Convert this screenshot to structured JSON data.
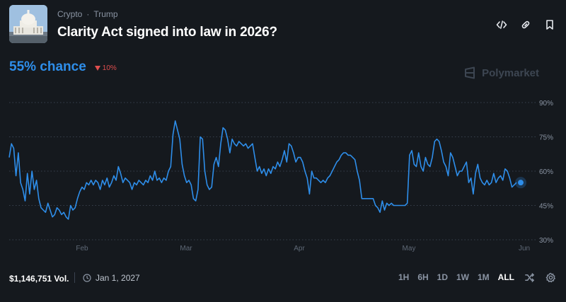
{
  "header": {
    "category": "Crypto",
    "separator": "·",
    "subcategory": "Trump",
    "title": "Clarity Act signed into law in 2026?",
    "actions": [
      "embed-icon",
      "link-icon",
      "bookmark-icon"
    ]
  },
  "summary": {
    "chance": "55% chance",
    "delta": "10%",
    "delta_direction": "down",
    "delta_color": "#e04e4e",
    "accent": "#2e8eea"
  },
  "brand": {
    "name": "Polymarket"
  },
  "chart_data": {
    "type": "line",
    "x_ticks": [
      "Feb",
      "Mar",
      "Apr",
      "May",
      "Jun"
    ],
    "y_ticks": [
      "90%",
      "75%",
      "60%",
      "45%",
      "30%"
    ],
    "ylim": [
      30,
      90
    ],
    "grid": "horizontal dotted",
    "series": [
      {
        "color": "#2e8eea",
        "points": [
          [
            0,
            66
          ],
          [
            1,
            72
          ],
          [
            2,
            70
          ],
          [
            3,
            58
          ],
          [
            4,
            68
          ],
          [
            5,
            55
          ],
          [
            6,
            52
          ],
          [
            7,
            47
          ],
          [
            8,
            59
          ],
          [
            9,
            50
          ],
          [
            10,
            60
          ],
          [
            11,
            52
          ],
          [
            12,
            56
          ],
          [
            13,
            48
          ],
          [
            14,
            44
          ],
          [
            15,
            43
          ],
          [
            16,
            42
          ],
          [
            17,
            46
          ],
          [
            18,
            43
          ],
          [
            19,
            40
          ],
          [
            20,
            41
          ],
          [
            21,
            44
          ],
          [
            22,
            43
          ],
          [
            23,
            41
          ],
          [
            24,
            42
          ],
          [
            25,
            40
          ],
          [
            26,
            39
          ],
          [
            27,
            45
          ],
          [
            28,
            43
          ],
          [
            29,
            44
          ],
          [
            30,
            48
          ],
          [
            31,
            51
          ],
          [
            32,
            53
          ],
          [
            33,
            52
          ],
          [
            34,
            55
          ],
          [
            35,
            54
          ],
          [
            36,
            56
          ],
          [
            37,
            54
          ],
          [
            38,
            56
          ],
          [
            39,
            55
          ],
          [
            40,
            52
          ],
          [
            41,
            56
          ],
          [
            42,
            54
          ],
          [
            43,
            57
          ],
          [
            44,
            53
          ],
          [
            45,
            55
          ],
          [
            46,
            58
          ],
          [
            47,
            56
          ],
          [
            48,
            62
          ],
          [
            49,
            59
          ],
          [
            50,
            55
          ],
          [
            51,
            57
          ],
          [
            52,
            56
          ],
          [
            53,
            55
          ],
          [
            54,
            52
          ],
          [
            55,
            55
          ],
          [
            56,
            54
          ],
          [
            57,
            56
          ],
          [
            58,
            55
          ],
          [
            59,
            54
          ],
          [
            60,
            56
          ],
          [
            61,
            55
          ],
          [
            62,
            58
          ],
          [
            63,
            56
          ],
          [
            64,
            60
          ],
          [
            65,
            56
          ],
          [
            66,
            57
          ],
          [
            67,
            55
          ],
          [
            68,
            57
          ],
          [
            69,
            56
          ],
          [
            70,
            60
          ],
          [
            71,
            62
          ],
          [
            72,
            76
          ],
          [
            73,
            82
          ],
          [
            74,
            78
          ],
          [
            75,
            74
          ],
          [
            76,
            63
          ],
          [
            77,
            58
          ],
          [
            78,
            55
          ],
          [
            79,
            56
          ],
          [
            80,
            54
          ],
          [
            81,
            48
          ],
          [
            82,
            47
          ],
          [
            83,
            52
          ],
          [
            84,
            75
          ],
          [
            85,
            74
          ],
          [
            86,
            60
          ],
          [
            87,
            54
          ],
          [
            88,
            52
          ],
          [
            89,
            53
          ],
          [
            90,
            63
          ],
          [
            91,
            66
          ],
          [
            92,
            62
          ],
          [
            93,
            72
          ],
          [
            94,
            79
          ],
          [
            95,
            78
          ],
          [
            96,
            74
          ],
          [
            97,
            68
          ],
          [
            98,
            74
          ],
          [
            99,
            72
          ],
          [
            100,
            71
          ],
          [
            101,
            73
          ],
          [
            102,
            72
          ],
          [
            103,
            71
          ],
          [
            104,
            72
          ],
          [
            105,
            70
          ],
          [
            106,
            71
          ],
          [
            107,
            72
          ],
          [
            108,
            66
          ],
          [
            109,
            60
          ],
          [
            110,
            62
          ],
          [
            111,
            59
          ],
          [
            112,
            61
          ],
          [
            113,
            58
          ],
          [
            114,
            61
          ],
          [
            115,
            59
          ],
          [
            116,
            62
          ],
          [
            117,
            61
          ],
          [
            118,
            64
          ],
          [
            119,
            62
          ],
          [
            120,
            65
          ],
          [
            121,
            69
          ],
          [
            122,
            64
          ],
          [
            123,
            72
          ],
          [
            124,
            71
          ],
          [
            125,
            68
          ],
          [
            126,
            64
          ],
          [
            127,
            66
          ],
          [
            128,
            66
          ],
          [
            129,
            64
          ],
          [
            130,
            60
          ],
          [
            131,
            57
          ],
          [
            132,
            50
          ],
          [
            133,
            60
          ],
          [
            134,
            57
          ],
          [
            135,
            57
          ],
          [
            136,
            56
          ],
          [
            137,
            55
          ],
          [
            138,
            56
          ],
          [
            139,
            55
          ],
          [
            140,
            57
          ],
          [
            141,
            58
          ],
          [
            142,
            60
          ],
          [
            143,
            62
          ],
          [
            144,
            64
          ],
          [
            145,
            65
          ],
          [
            146,
            67
          ],
          [
            147,
            68
          ],
          [
            148,
            68
          ],
          [
            149,
            67
          ],
          [
            150,
            67
          ],
          [
            151,
            66
          ],
          [
            152,
            65
          ],
          [
            153,
            60
          ],
          [
            154,
            56
          ],
          [
            155,
            48
          ],
          [
            156,
            48
          ],
          [
            157,
            48
          ],
          [
            158,
            48
          ],
          [
            159,
            48
          ],
          [
            160,
            48
          ],
          [
            161,
            45
          ],
          [
            162,
            44
          ],
          [
            163,
            42
          ],
          [
            164,
            47
          ],
          [
            165,
            43
          ],
          [
            166,
            46
          ],
          [
            167,
            45
          ],
          [
            168,
            46
          ],
          [
            169,
            45
          ],
          [
            170,
            45
          ],
          [
            171,
            45
          ],
          [
            172,
            45
          ],
          [
            173,
            45
          ],
          [
            174,
            45
          ],
          [
            175,
            46
          ],
          [
            176,
            67
          ],
          [
            177,
            69
          ],
          [
            178,
            63
          ],
          [
            179,
            62
          ],
          [
            180,
            68
          ],
          [
            181,
            62
          ],
          [
            182,
            60
          ],
          [
            183,
            66
          ],
          [
            184,
            63
          ],
          [
            185,
            62
          ],
          [
            186,
            66
          ],
          [
            187,
            73
          ],
          [
            188,
            74
          ],
          [
            189,
            73
          ],
          [
            190,
            69
          ],
          [
            191,
            64
          ],
          [
            192,
            62
          ],
          [
            193,
            58
          ],
          [
            194,
            68
          ],
          [
            195,
            66
          ],
          [
            196,
            62
          ],
          [
            197,
            58
          ],
          [
            198,
            60
          ],
          [
            199,
            60
          ],
          [
            200,
            62
          ],
          [
            201,
            64
          ],
          [
            202,
            55
          ],
          [
            203,
            57
          ],
          [
            204,
            50
          ],
          [
            205,
            59
          ],
          [
            206,
            63
          ],
          [
            207,
            57
          ],
          [
            208,
            55
          ],
          [
            209,
            54
          ],
          [
            210,
            56
          ],
          [
            211,
            54
          ],
          [
            212,
            55
          ],
          [
            213,
            59
          ],
          [
            214,
            55
          ],
          [
            215,
            57
          ],
          [
            216,
            58
          ],
          [
            217,
            56
          ],
          [
            218,
            61
          ],
          [
            219,
            60
          ],
          [
            220,
            57
          ],
          [
            221,
            53
          ],
          [
            222,
            54
          ],
          [
            223,
            55
          ]
        ]
      }
    ]
  },
  "footer": {
    "volume": "$1,146,751 Vol.",
    "end_date": "Jan 1, 2027",
    "ranges": [
      "1H",
      "6H",
      "1D",
      "1W",
      "1M",
      "ALL"
    ],
    "active_range": "ALL"
  }
}
